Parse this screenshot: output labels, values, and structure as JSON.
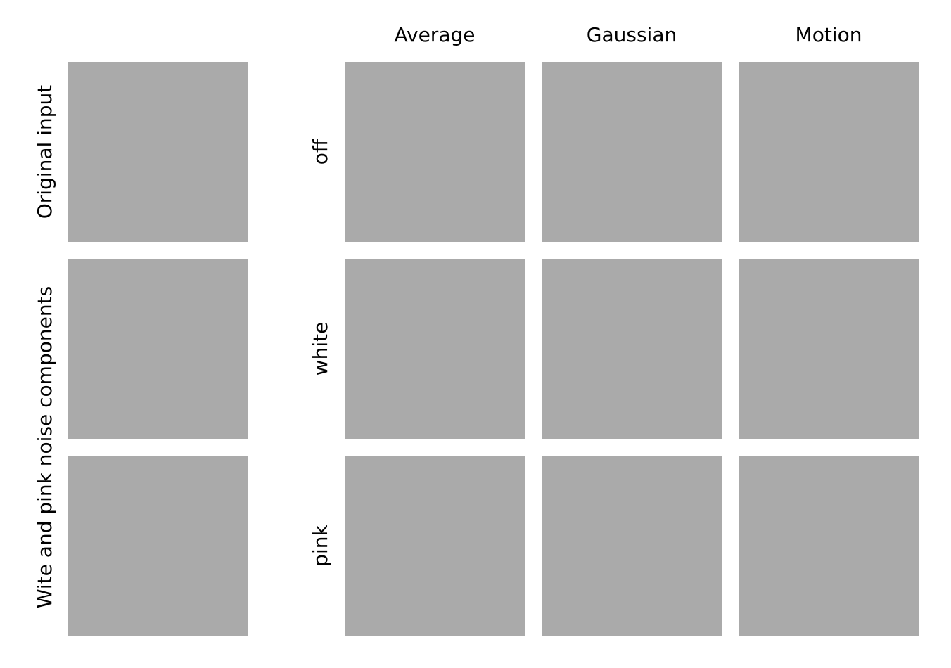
{
  "column_headers": [
    "Average",
    "Gaussian",
    "Motion"
  ],
  "row_labels": [
    "off",
    "white",
    "pink"
  ],
  "left_labels": {
    "original": "Original input",
    "noise": "Wite and pink noise components"
  },
  "colors": {
    "panel_fill": "#aaaaaa",
    "background": "#ffffff",
    "text": "#000000"
  }
}
